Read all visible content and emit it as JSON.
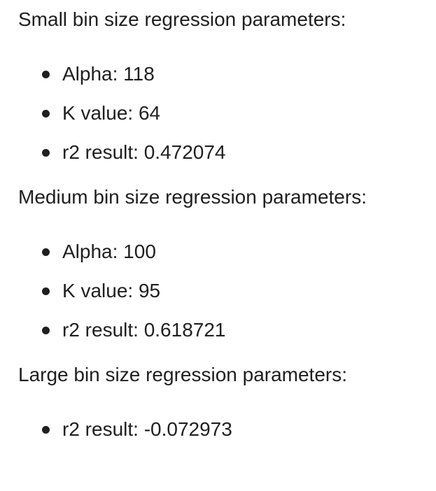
{
  "sections": [
    {
      "heading": "Small bin size regression parameters:",
      "items": [
        "Alpha: 118",
        "K value: 64",
        "r2 result: 0.472074"
      ]
    },
    {
      "heading": "Medium bin size regression parameters:",
      "items": [
        "Alpha: 100",
        "K value: 95",
        "r2 result: 0.618721"
      ]
    },
    {
      "heading": "Large bin size regression parameters:",
      "items": [
        "r2 result: -0.072973"
      ]
    }
  ]
}
